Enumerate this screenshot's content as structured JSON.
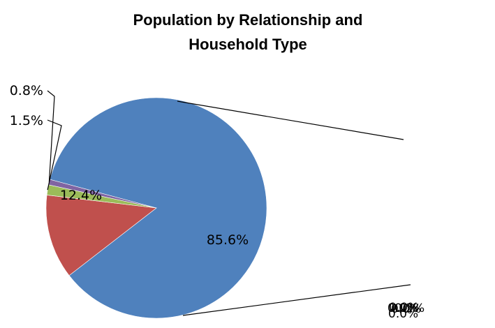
{
  "chart_data": {
    "type": "pie",
    "title_lines": [
      "Population by Relationship and",
      "Household Type"
    ],
    "slices": [
      {
        "value": 85.6,
        "label": "85.6%",
        "color": "#4F81BD"
      },
      {
        "value": 12.4,
        "label": "12.4%",
        "color": "#C0504D"
      },
      {
        "value": 1.5,
        "label": "1.5%",
        "color": "#9BBB59"
      },
      {
        "value": 0.8,
        "label": "0.8%",
        "color": "#8064A2"
      }
    ],
    "secondary_labels": [
      "0.0%",
      "0.0%",
      "0.0%",
      "0.0%",
      "0.2%"
    ]
  }
}
